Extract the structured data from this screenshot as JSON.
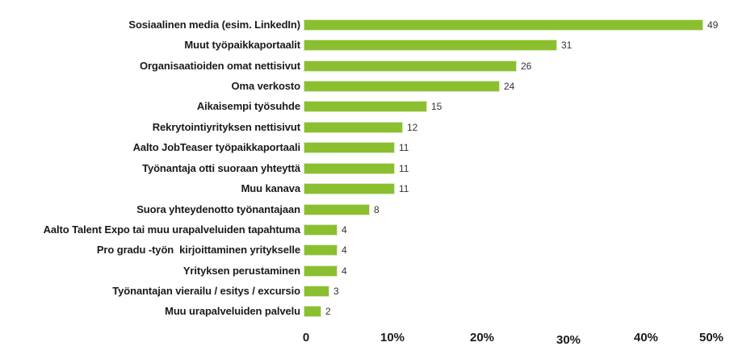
{
  "chart_data": {
    "type": "bar",
    "orientation": "horizontal",
    "title": "",
    "xlabel": "",
    "ylabel": "",
    "bar_color": "#8bbf2f",
    "xlim": [
      0,
      50
    ],
    "x_ticks": [
      "0",
      "10%",
      "20%",
      "30%",
      "40%",
      "50%"
    ],
    "grid": false,
    "legend": null,
    "categories": [
      "Sosiaalinen media (esim. LinkedIn)",
      "Muut työpaikkaportaalit",
      "Organisaatioiden omat nettisivut",
      "Oma verkosto",
      "Aikaisempi työsuhde",
      "Rekrytointiyrityksen nettisivut",
      "Aalto JobTeaser työpaikkaportaali",
      "Työnantaja otti suoraan yhteyttä",
      "Muu kanava",
      "Suora yhteydenotto työnantajaan",
      "Aalto Talent Expo tai muu urapalveluiden tapahtuma",
      "Pro gradu -työn  kirjoittaminen yritykselle",
      "Yrityksen perustaminen",
      "Työnantajan vierailu / esitys / excursio",
      "Muu urapalveluiden palvelu"
    ],
    "values": [
      49,
      31,
      26,
      24,
      15,
      12,
      11,
      11,
      11,
      8,
      4,
      4,
      4,
      3,
      2
    ],
    "value_labels": [
      "49",
      "31",
      "26",
      "24",
      "15",
      "12",
      "11",
      "11",
      "11",
      "8",
      "4",
      "4",
      "4",
      "3",
      "2"
    ]
  }
}
